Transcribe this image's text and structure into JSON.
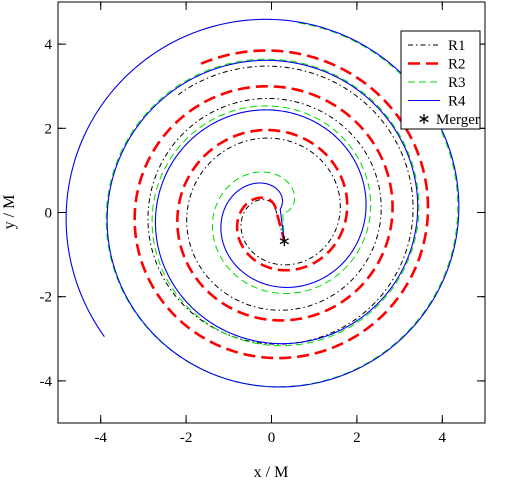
{
  "chart_data": {
    "type": "line",
    "xlabel": "x / M",
    "ylabel": "y / M",
    "xlim": [
      -5,
      5
    ],
    "ylim": [
      -5,
      5
    ],
    "xticks": [
      "-4",
      "-2",
      "0",
      "2",
      "4"
    ],
    "yticks": [
      "-4",
      "-2",
      "0",
      "2",
      "4"
    ],
    "xtick_values": [
      -4,
      -2,
      0,
      2,
      4
    ],
    "ytick_values": [
      -4,
      -2,
      0,
      2,
      4
    ],
    "grid": false,
    "legend_position": "top-right",
    "merger": {
      "name": "Merger",
      "x": 0.3,
      "y": -0.68,
      "color": "#000000"
    },
    "series": [
      {
        "name": "R1",
        "color": "#000000",
        "dash": "dash-dot",
        "radius_start": 3.55,
        "theta_start_deg": 128,
        "turns": 3.08
      },
      {
        "name": "R2",
        "color": "#ff0000",
        "dash": "long-dash",
        "radius_start": 3.9,
        "theta_start_deg": 115,
        "turns": 3.05
      },
      {
        "name": "R3",
        "color": "#00dd00",
        "dash": "dash",
        "radius_start": 4.55,
        "theta_start_deg": 82,
        "turns": 3.2
      },
      {
        "name": "R4",
        "color": "#0000ee",
        "dash": "solid",
        "radius_start": 4.9,
        "theta_start_deg": 217,
        "turns": 3.45
      }
    ]
  }
}
